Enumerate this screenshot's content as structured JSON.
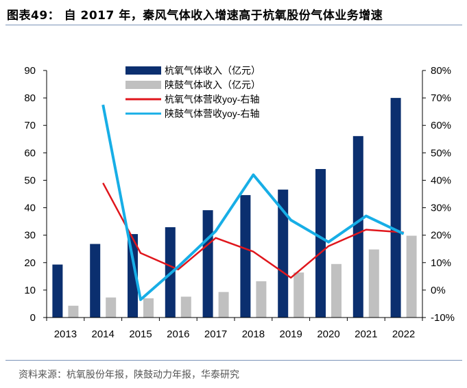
{
  "title": "图表49： 自 2017 年，秦风气体收入增速高于杭氧股份气体业务增速",
  "source": "资料来源：杭氧股份年报，陕鼓动力年报，华泰研究",
  "chart_data": {
    "type": "bar",
    "categories": [
      "2013",
      "2014",
      "2015",
      "2016",
      "2017",
      "2018",
      "2019",
      "2020",
      "2021",
      "2022"
    ],
    "left_axis": {
      "min": 0,
      "max": 90,
      "ticks": [
        "0",
        "10",
        "20",
        "30",
        "40",
        "50",
        "60",
        "70",
        "80",
        "90"
      ]
    },
    "right_axis": {
      "min": -10,
      "max": 80,
      "ticks": [
        "-10%",
        "0%",
        "10%",
        "20%",
        "30%",
        "40%",
        "50%",
        "60%",
        "70%",
        "80%"
      ]
    },
    "series": [
      {
        "name": "杭氧气体收入（亿元）",
        "kind": "bar",
        "axis": "left",
        "color": "#0b2f6f",
        "values": [
          19.3,
          26.8,
          30.4,
          32.9,
          39.1,
          44.6,
          46.6,
          54.1,
          66.1,
          80.0
        ]
      },
      {
        "name": "陕鼓气体收入（亿元）",
        "kind": "bar",
        "axis": "left",
        "color": "#c0c0c0",
        "values": [
          4.3,
          7.3,
          7.0,
          7.6,
          9.3,
          13.2,
          16.4,
          19.5,
          24.8,
          29.8
        ]
      },
      {
        "name": "杭氧气体营收yoy-右轴",
        "kind": "line",
        "axis": "right",
        "color": "#e0161c",
        "values": [
          null,
          39,
          13.5,
          7.5,
          19,
          14,
          4.5,
          16,
          22,
          21
        ]
      },
      {
        "name": "陕鼓气体营收yoy-右轴",
        "kind": "line",
        "axis": "right",
        "color": "#17aee6",
        "values": [
          null,
          67.5,
          -3.5,
          8.5,
          21.5,
          42,
          25.5,
          17.5,
          27,
          20.5
        ]
      }
    ]
  }
}
